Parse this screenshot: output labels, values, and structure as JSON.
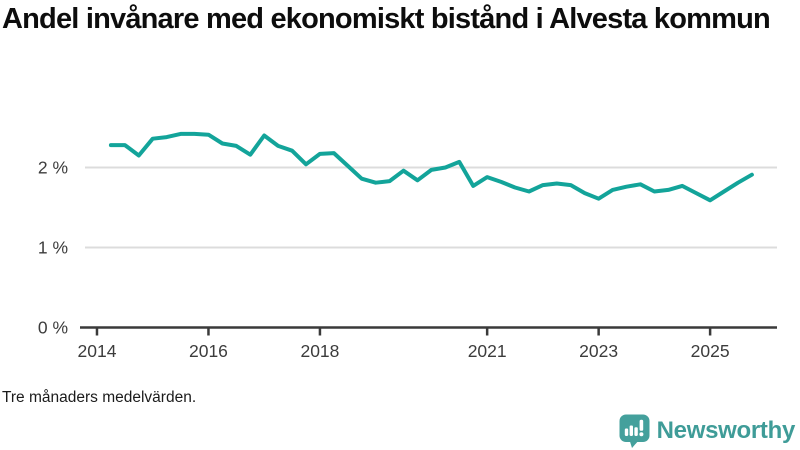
{
  "header": {
    "title": "Andel invånare med ekonomiskt bistånd i Alvesta kommun"
  },
  "footnote": "Tre månaders medelvärden.",
  "branding": {
    "logo_text": "Newsworthy",
    "logo_icon": "bar-chart-speech-bubble-icon",
    "logo_color": "#44a09c"
  },
  "colors": {
    "line": "#13a49a",
    "grid": "#dcdcdc",
    "axis": "#3a3a3a",
    "tick_label": "#3c3c3c",
    "title": "#0d0d0d"
  },
  "chart_data": {
    "type": "line",
    "title": "Andel invånare med ekonomiskt bistånd i Alvesta kommun",
    "subtitle": "Tre månaders medelvärden.",
    "series_name": "Andel invånare med ekonomiskt bistånd (%)",
    "x": [
      2014.25,
      2014.5,
      2014.75,
      2015.0,
      2015.25,
      2015.5,
      2015.75,
      2016.0,
      2016.25,
      2016.5,
      2016.75,
      2017.0,
      2017.25,
      2017.5,
      2017.75,
      2018.0,
      2018.25,
      2018.5,
      2018.75,
      2019.0,
      2019.25,
      2019.5,
      2019.75,
      2020.0,
      2020.25,
      2020.5,
      2020.75,
      2021.0,
      2021.25,
      2021.5,
      2021.75,
      2022.0,
      2022.25,
      2022.5,
      2022.75,
      2023.0,
      2023.25,
      2023.5,
      2023.75,
      2024.0,
      2024.25,
      2024.5,
      2024.75,
      2025.0,
      2025.25,
      2025.5,
      2025.75
    ],
    "values": [
      2.28,
      2.28,
      2.15,
      2.36,
      2.38,
      2.42,
      2.42,
      2.41,
      2.3,
      2.27,
      2.16,
      2.4,
      2.27,
      2.21,
      2.04,
      2.17,
      2.18,
      2.02,
      1.86,
      1.81,
      1.83,
      1.96,
      1.84,
      1.97,
      2.0,
      2.07,
      1.77,
      1.88,
      1.82,
      1.75,
      1.7,
      1.78,
      1.8,
      1.78,
      1.68,
      1.61,
      1.72,
      1.76,
      1.79,
      1.7,
      1.72,
      1.77,
      1.68,
      1.59,
      1.7,
      1.81,
      1.91
    ],
    "xlabel": "",
    "ylabel": "",
    "xticks": [
      {
        "value": 2014,
        "label": "2014"
      },
      {
        "value": 2016,
        "label": "2016"
      },
      {
        "value": 2018,
        "label": "2018"
      },
      {
        "value": 2021,
        "label": "2021"
      },
      {
        "value": 2023,
        "label": "2023"
      },
      {
        "value": 2025,
        "label": "2025"
      }
    ],
    "yticks": [
      {
        "value": 0,
        "label": "0 %"
      },
      {
        "value": 1,
        "label": "1 %"
      },
      {
        "value": 2,
        "label": "2 %"
      }
    ],
    "xlim": [
      2013.785,
      2026.2
    ],
    "ylim": [
      0,
      2.6
    ],
    "grid": "horizontal",
    "legend": "none"
  }
}
